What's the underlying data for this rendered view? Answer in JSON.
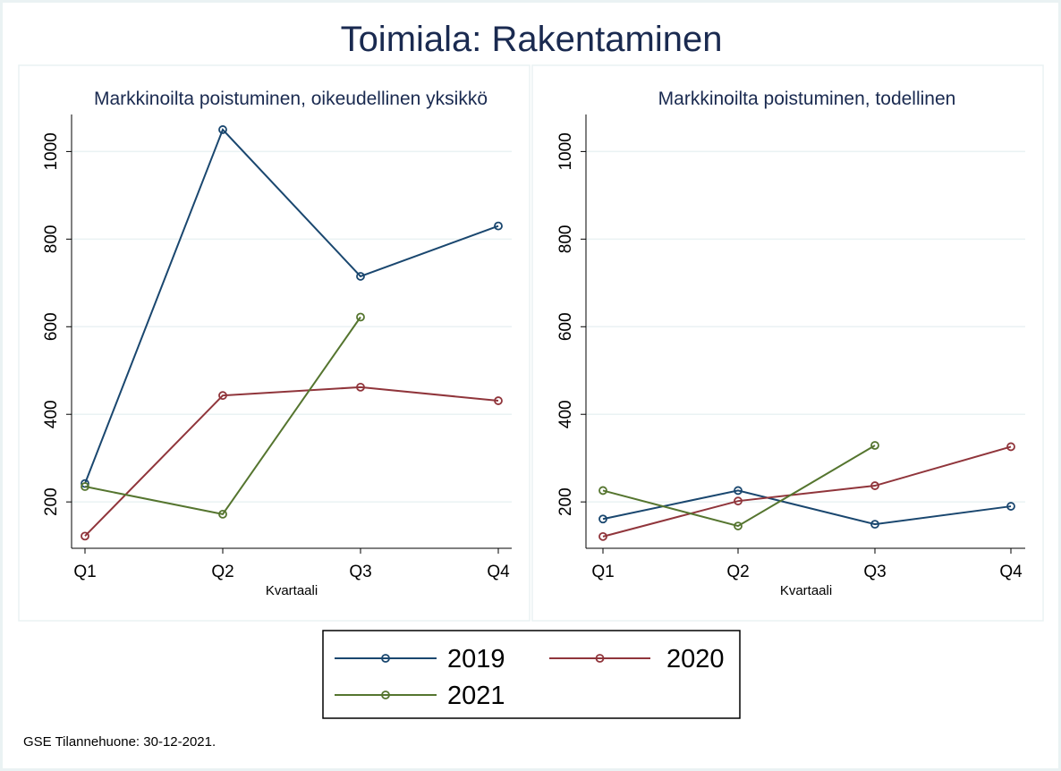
{
  "title": "Toimiala: Rakentaminen",
  "footer_note": "GSE Tilannehuone: 30-12-2021.",
  "colors": {
    "2019": "#1a476f",
    "2020": "#90353b",
    "2021": "#55752f",
    "title": "#1a2a50",
    "frame": "#eaf2f3",
    "grid": "#eaf2f3"
  },
  "chart_data": [
    {
      "type": "line",
      "title": "Markkinoilta poistuminen, oikeudellinen yksikkö",
      "xlabel": "Kvartaali",
      "ylabel": "",
      "categories": [
        "Q1",
        "Q2",
        "Q3",
        "Q4"
      ],
      "yticks": [
        200,
        400,
        600,
        800,
        1000
      ],
      "ylim": [
        90,
        1080
      ],
      "grid": true,
      "legend": "bottom",
      "series": [
        {
          "name": "2019",
          "values": [
            242,
            1050,
            715,
            830
          ]
        },
        {
          "name": "2020",
          "values": [
            122,
            443,
            462,
            431
          ]
        },
        {
          "name": "2021",
          "values": [
            235,
            172,
            622,
            null
          ]
        }
      ]
    },
    {
      "type": "line",
      "title": "Markkinoilta poistuminen, todellinen",
      "xlabel": "Kvartaali",
      "ylabel": "",
      "categories": [
        "Q1",
        "Q2",
        "Q3",
        "Q4"
      ],
      "yticks": [
        200,
        400,
        600,
        800,
        1000
      ],
      "ylim": [
        90,
        1080
      ],
      "grid": true,
      "legend": "bottom",
      "series": [
        {
          "name": "2019",
          "values": [
            161,
            226,
            149,
            190
          ]
        },
        {
          "name": "2020",
          "values": [
            121,
            202,
            237,
            326
          ]
        },
        {
          "name": "2021",
          "values": [
            226,
            145,
            329,
            null
          ]
        }
      ]
    }
  ],
  "legend": {
    "items": [
      "2019",
      "2020",
      "2021"
    ]
  }
}
